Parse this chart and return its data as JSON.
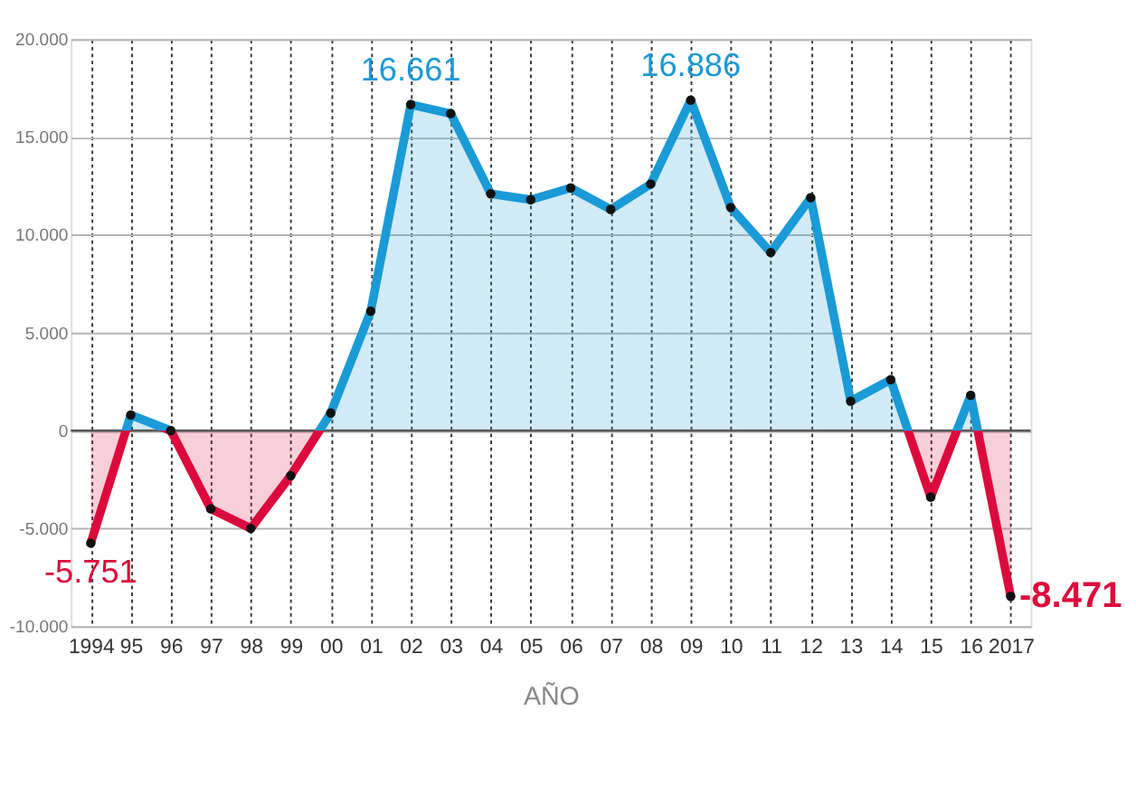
{
  "chart_data": {
    "type": "area",
    "xlabel": "AÑO",
    "categories": [
      "1994",
      "95",
      "96",
      "97",
      "98",
      "99",
      "00",
      "01",
      "02",
      "03",
      "04",
      "05",
      "06",
      "07",
      "08",
      "09",
      "10",
      "11",
      "12",
      "13",
      "14",
      "15",
      "16",
      "2017"
    ],
    "series": [
      {
        "color": "#1a9ad6",
        "values": [
          -5751,
          800,
          0,
          -4000,
          -5000,
          -2300,
          900,
          6100,
          16661,
          16200,
          12100,
          11800,
          12400,
          11300,
          12600,
          16886,
          11400,
          9100,
          11900,
          1500,
          2600,
          -3400,
          1800,
          -8471
        ],
        "colors": [
          "#dc0a3c",
          "#1a9ad6",
          "#dc0a3c",
          "#dc0a3c",
          "#dc0a3c",
          "#dc0a3c",
          "#1a9ad6",
          "#1a9ad6",
          "#1a9ad6",
          "#1a9ad6",
          "#1a9ad6",
          "#1a9ad6",
          "#1a9ad6",
          "#1a9ad6",
          "#1a9ad6",
          "#1a9ad6",
          "#1a9ad6",
          "#1a9ad6",
          "#1a9ad6",
          "#1a9ad6",
          "#1a9ad6",
          "#dc0a3c",
          "#1a9ad6",
          "#dc0a3c"
        ],
        "value_labels": [
          "-5.751",
          null,
          null,
          null,
          null,
          null,
          null,
          null,
          "16.661",
          null,
          null,
          null,
          null,
          null,
          null,
          "16.886",
          null,
          null,
          null,
          null,
          null,
          null,
          null,
          "-8.471"
        ]
      }
    ],
    "ylim": [
      -10000,
      20000
    ],
    "yticks": [
      {
        "value": -10000,
        "label": "-10.000"
      },
      {
        "value": -5000,
        "label": "-5.000"
      },
      {
        "value": 0,
        "label": "0"
      },
      {
        "value": 5000,
        "label": "5.000"
      },
      {
        "value": 10000,
        "label": "10.000"
      },
      {
        "value": 15000,
        "label": "15.000"
      },
      {
        "value": 20000,
        "label": "20.000"
      }
    ],
    "ref_lines": [
      {
        "axis": "y",
        "value": 0,
        "color": "#555555"
      }
    ],
    "grid": true,
    "marker": "circle",
    "line_style": "solid"
  }
}
